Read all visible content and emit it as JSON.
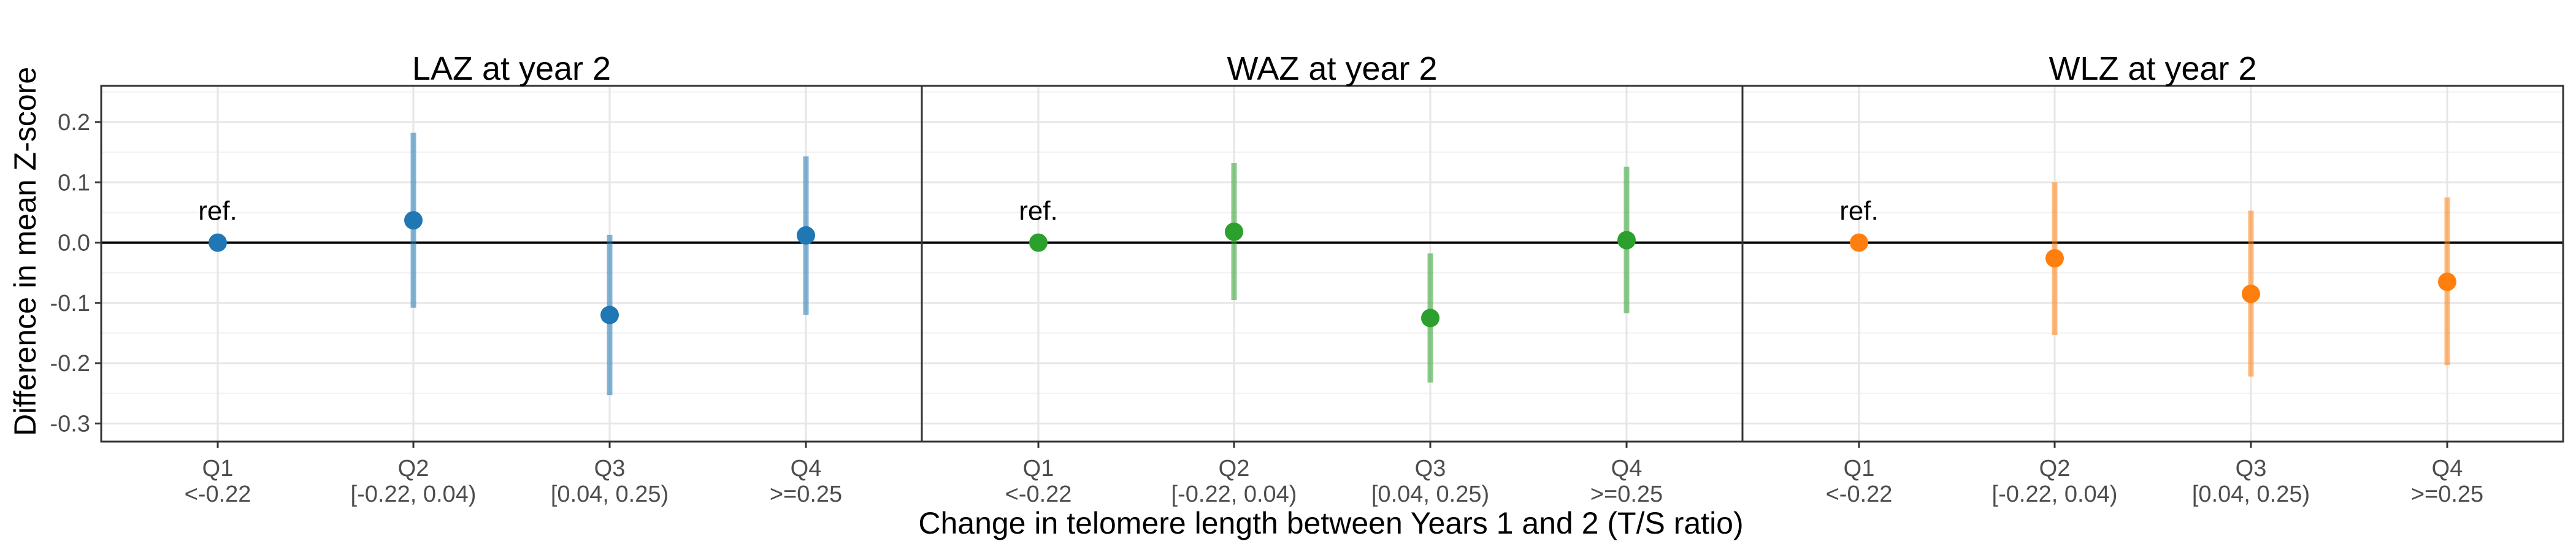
{
  "chart_data": {
    "type": "scatter",
    "subtype": "point-range (estimate with 95% CI), faceted",
    "ylabel": "Difference in mean Z-score",
    "xlabel": "Change in telomere length between Years 1 and 2 (T/S ratio)",
    "ylim": [
      -0.33,
      0.26
    ],
    "yticks": [
      -0.3,
      -0.2,
      -0.1,
      0.0,
      0.1,
      0.2
    ],
    "ytick_labels": [
      "-0.3",
      "-0.2",
      "-0.1",
      "0.0",
      "0.1",
      "0.2"
    ],
    "categories": [
      "Q1",
      "Q2",
      "Q3",
      "Q4"
    ],
    "category_sublabels": [
      "<-0.22",
      "[-0.22, 0.04)",
      "[0.04, 0.25)",
      ">=0.25"
    ],
    "reference_line": 0,
    "grid": true,
    "legend": "none",
    "panels": [
      {
        "title": "LAZ at year 2",
        "color": "#1f77b4",
        "ref_label": "ref.",
        "points": [
          {
            "category": "Q1",
            "y": 0.0,
            "lower": null,
            "upper": null
          },
          {
            "category": "Q2",
            "y": 0.037,
            "lower": -0.108,
            "upper": 0.182
          },
          {
            "category": "Q3",
            "y": -0.12,
            "lower": -0.253,
            "upper": 0.013
          },
          {
            "category": "Q4",
            "y": 0.012,
            "lower": -0.12,
            "upper": 0.143
          }
        ]
      },
      {
        "title": "WAZ at year 2",
        "color": "#2ca02c",
        "ref_label": "ref.",
        "points": [
          {
            "category": "Q1",
            "y": 0.0,
            "lower": null,
            "upper": null
          },
          {
            "category": "Q2",
            "y": 0.018,
            "lower": -0.095,
            "upper": 0.132
          },
          {
            "category": "Q3",
            "y": -0.125,
            "lower": -0.232,
            "upper": -0.018
          },
          {
            "category": "Q4",
            "y": 0.004,
            "lower": -0.117,
            "upper": 0.126
          }
        ]
      },
      {
        "title": "WLZ at year 2",
        "color": "#ff7f0e",
        "ref_label": "ref.",
        "points": [
          {
            "category": "Q1",
            "y": 0.0,
            "lower": null,
            "upper": null
          },
          {
            "category": "Q2",
            "y": -0.026,
            "lower": -0.153,
            "upper": 0.1
          },
          {
            "category": "Q3",
            "y": -0.085,
            "lower": -0.222,
            "upper": 0.053
          },
          {
            "category": "Q4",
            "y": -0.065,
            "lower": -0.203,
            "upper": 0.075
          }
        ]
      }
    ]
  }
}
